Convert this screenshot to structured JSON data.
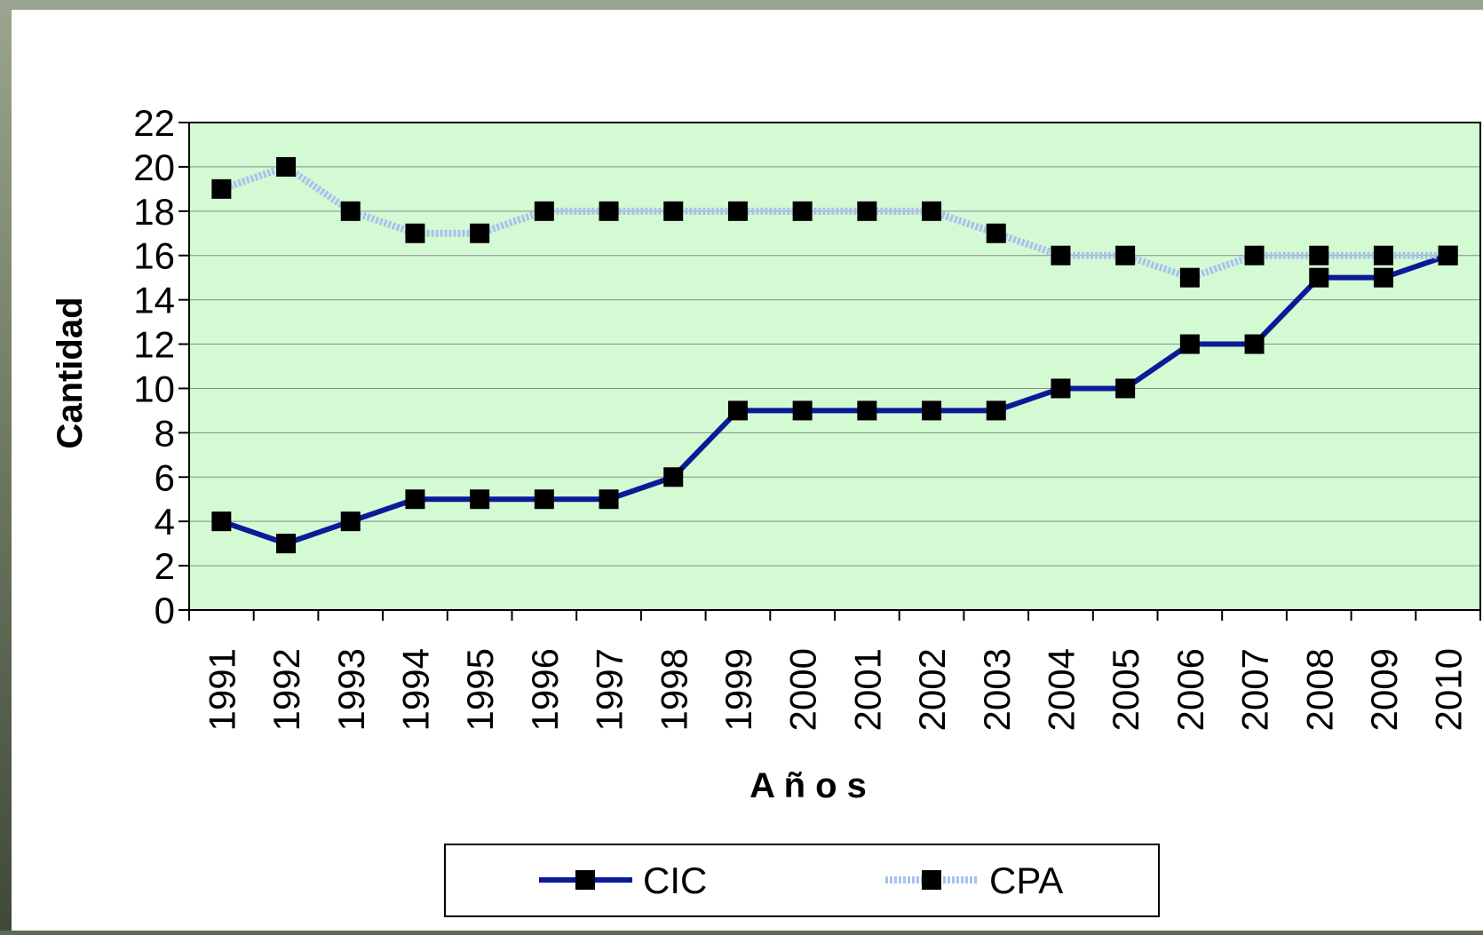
{
  "chart_data": {
    "type": "line",
    "x_label": "A ñ o s",
    "y_label": "Cantidad",
    "categories": [
      "1991",
      "1992",
      "1993",
      "1994",
      "1995",
      "1996",
      "1997",
      "1998",
      "1999",
      "2000",
      "2001",
      "2002",
      "2003",
      "2004",
      "2005",
      "2006",
      "2007",
      "2008",
      "2009",
      "2010"
    ],
    "series": [
      {
        "name": "CIC",
        "color": "#0b1a98",
        "values": [
          4,
          3,
          4,
          5,
          5,
          5,
          5,
          6,
          9,
          9,
          9,
          9,
          9,
          10,
          10,
          12,
          12,
          15,
          15,
          16
        ]
      },
      {
        "name": "CPA",
        "color": "#a9c1ee",
        "values": [
          19,
          20,
          18,
          17,
          17,
          18,
          18,
          18,
          18,
          18,
          18,
          18,
          17,
          16,
          16,
          15,
          16,
          16,
          16,
          16
        ]
      }
    ],
    "ylim": [
      0,
      22
    ],
    "yticks": [
      0,
      2,
      4,
      6,
      8,
      10,
      12,
      14,
      16,
      18,
      20,
      22
    ],
    "grid": true,
    "plot_background": "#d4fad4"
  }
}
